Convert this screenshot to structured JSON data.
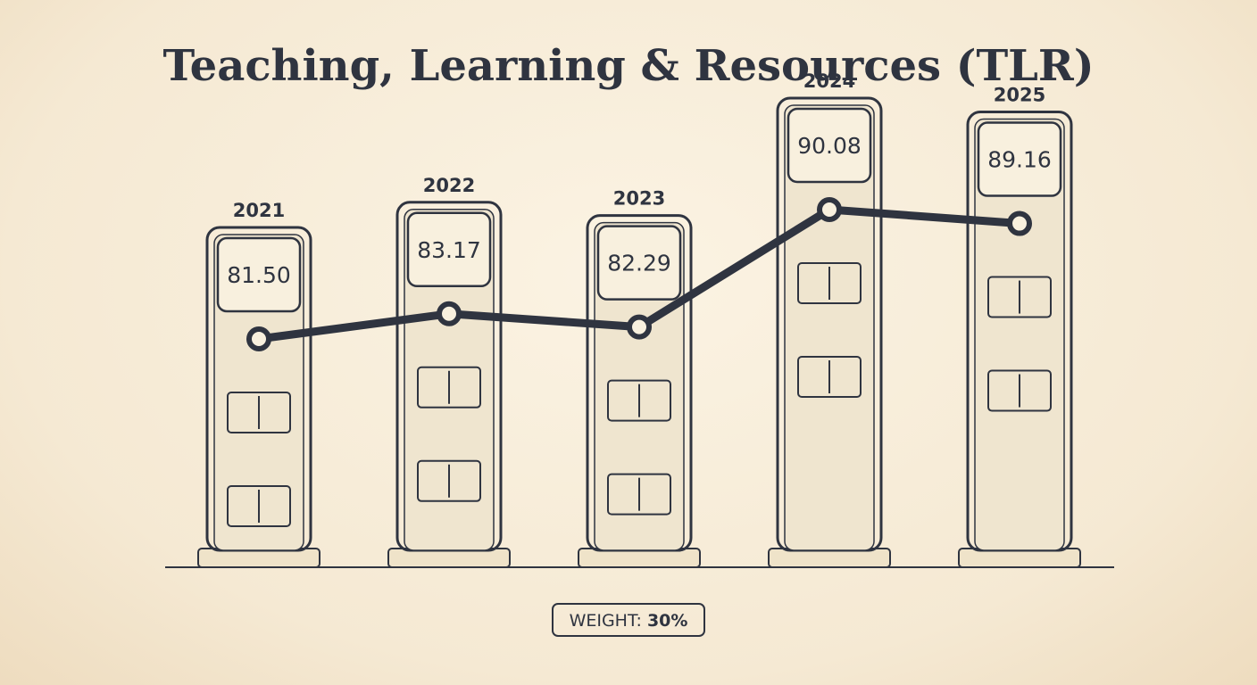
{
  "chart_data": {
    "type": "line",
    "title": "Teaching, Learning & Resources (TLR)",
    "categories": [
      "2021",
      "2022",
      "2023",
      "2024",
      "2025"
    ],
    "values": [
      81.5,
      83.17,
      82.29,
      90.08,
      89.16
    ],
    "value_labels": [
      "81.50",
      "83.17",
      "82.29",
      "90.08",
      "89.16"
    ],
    "color": "#2f3440",
    "weight_label": "WEIGHT:",
    "weight_value": "30%"
  }
}
